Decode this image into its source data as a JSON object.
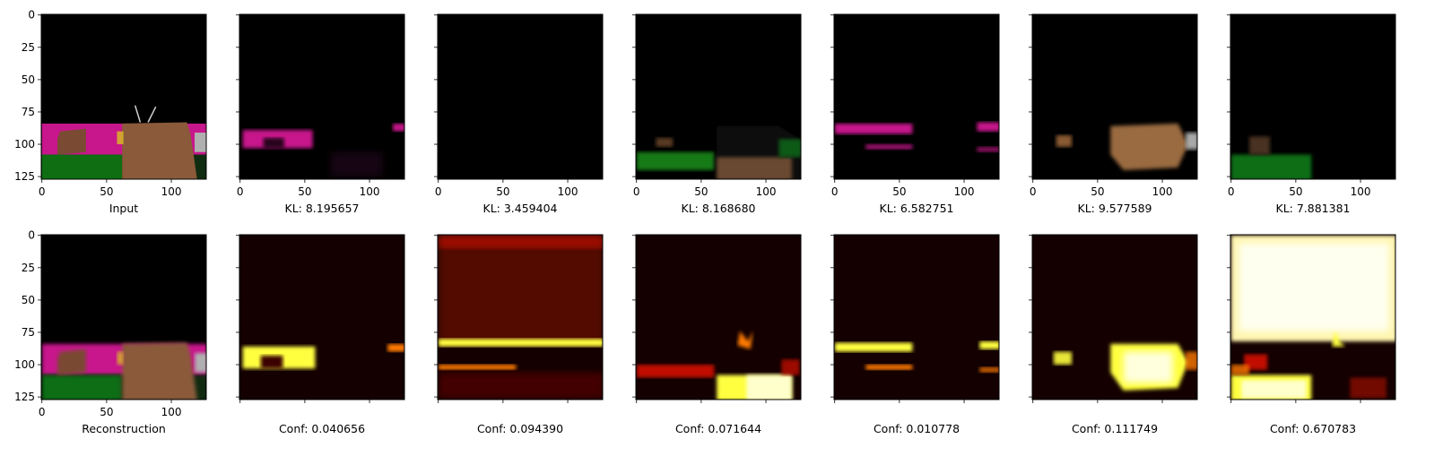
{
  "chart_data": {
    "type": "heatmap",
    "layout": "2x7 image grid",
    "axis_range": [
      0,
      127
    ],
    "ytick_labels": [
      "0",
      "25",
      "50",
      "75",
      "100",
      "125"
    ],
    "xtick_labels": [
      "0",
      "50",
      "100"
    ],
    "top_row": {
      "panels": [
        {
          "label": "Input",
          "kind": "rgb",
          "content": "input scene"
        },
        {
          "label": "KL: 8.195657",
          "kind": "rgb",
          "content": "slot-pink-left"
        },
        {
          "label": "KL: 3.459404",
          "kind": "rgb",
          "content": "slot-empty"
        },
        {
          "label": "KL: 8.168680",
          "kind": "rgb",
          "content": "slot-floor-box"
        },
        {
          "label": "KL: 6.582751",
          "kind": "rgb",
          "content": "slot-pink-stripes"
        },
        {
          "label": "KL: 9.577589",
          "kind": "rgb",
          "content": "slot-brown-box"
        },
        {
          "label": "KL: 7.881381",
          "kind": "rgb",
          "content": "slot-green-floor"
        }
      ]
    },
    "bottom_row": {
      "panels": [
        {
          "label": "Reconstruction",
          "kind": "rgb",
          "value": null
        },
        {
          "label": "Conf: 0.040656",
          "kind": "heatmap",
          "value": 0.040656
        },
        {
          "label": "Conf: 0.094390",
          "kind": "heatmap",
          "value": 0.09439
        },
        {
          "label": "Conf: 0.071644",
          "kind": "heatmap",
          "value": 0.071644
        },
        {
          "label": "Conf: 0.010778",
          "kind": "heatmap",
          "value": 0.010778
        },
        {
          "label": "Conf: 0.111749",
          "kind": "heatmap",
          "value": 0.111749
        },
        {
          "label": "Conf: 0.670783",
          "kind": "heatmap",
          "value": 0.670783
        }
      ]
    },
    "colormap": "hot"
  },
  "colors": {
    "black": "#000000",
    "pink": "#c8168c",
    "green": "#0f6e12",
    "brown": "#8a5a3a",
    "hot_dark": "#3a0400",
    "hot_red": "#c01000",
    "hot_orange": "#ff7a00",
    "hot_yellow": "#ffff40",
    "hot_white": "#fffff0"
  }
}
